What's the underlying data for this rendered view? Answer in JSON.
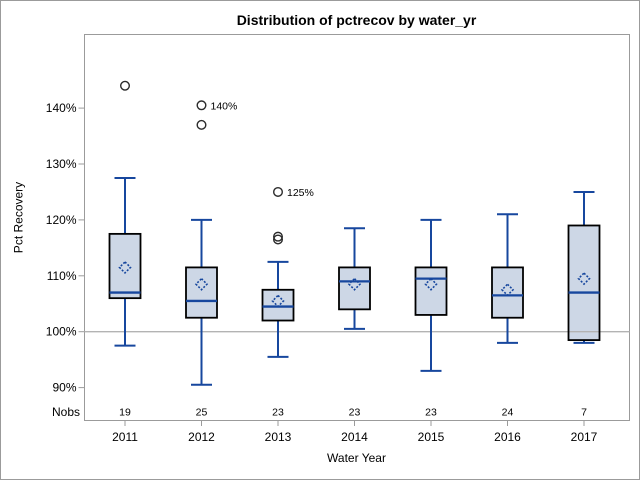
{
  "chart_data": {
    "type": "boxplot",
    "title": "Distribution of pctrecov by water_yr",
    "xlabel": "Water Year",
    "ylabel": "Pct Recovery",
    "nobs_label": "Nobs",
    "y_ticks": [
      90,
      100,
      110,
      120,
      130,
      140
    ],
    "y_tick_suffix": "%",
    "ylim": [
      85,
      148
    ],
    "reference_line": 100,
    "grid": "off",
    "legend": "none",
    "categories": [
      "2011",
      "2012",
      "2013",
      "2014",
      "2015",
      "2016",
      "2017"
    ],
    "series": [
      {
        "label": "2011",
        "n": 19,
        "whisker_low": 97.5,
        "q1": 106,
        "median": 107,
        "mean": 111.5,
        "q3": 117.5,
        "whisker_high": 127.5,
        "outliers": [
          {
            "value": 144,
            "label": ""
          }
        ]
      },
      {
        "label": "2012",
        "n": 25,
        "whisker_low": 90.5,
        "q1": 102.5,
        "median": 105.5,
        "mean": 108.5,
        "q3": 111.5,
        "whisker_high": 120,
        "outliers": [
          {
            "value": 140.5,
            "label": "140%"
          },
          {
            "value": 137,
            "label": ""
          }
        ]
      },
      {
        "label": "2013",
        "n": 23,
        "whisker_low": 95.5,
        "q1": 102,
        "median": 104.5,
        "mean": 105.5,
        "q3": 107.5,
        "whisker_high": 112.5,
        "outliers": [
          {
            "value": 125,
            "label": "125%"
          },
          {
            "value": 117,
            "label": ""
          },
          {
            "value": 116.5,
            "label": ""
          }
        ]
      },
      {
        "label": "2014",
        "n": 23,
        "whisker_low": 100.5,
        "q1": 104,
        "median": 109,
        "mean": 108.5,
        "q3": 111.5,
        "whisker_high": 118.5,
        "outliers": []
      },
      {
        "label": "2015",
        "n": 23,
        "whisker_low": 93,
        "q1": 103,
        "median": 109.5,
        "mean": 108.5,
        "q3": 111.5,
        "whisker_high": 120,
        "outliers": []
      },
      {
        "label": "2016",
        "n": 24,
        "whisker_low": 98,
        "q1": 102.5,
        "median": 106.5,
        "mean": 107.5,
        "q3": 111.5,
        "whisker_high": 121,
        "outliers": []
      },
      {
        "label": "2017",
        "n": 7,
        "whisker_low": 98,
        "q1": 98.5,
        "median": 107,
        "mean": 109.5,
        "q3": 119,
        "whisker_high": 125,
        "outliers": []
      }
    ],
    "colors": {
      "background": "#ffffff",
      "box_fill": "#cdd7e6",
      "box_edge": "#000000",
      "line": "#17479e",
      "outlier": "#2b2b2b",
      "reference": "#b3b3b3",
      "frame": "#9b9b9b",
      "text": "#000000"
    }
  }
}
